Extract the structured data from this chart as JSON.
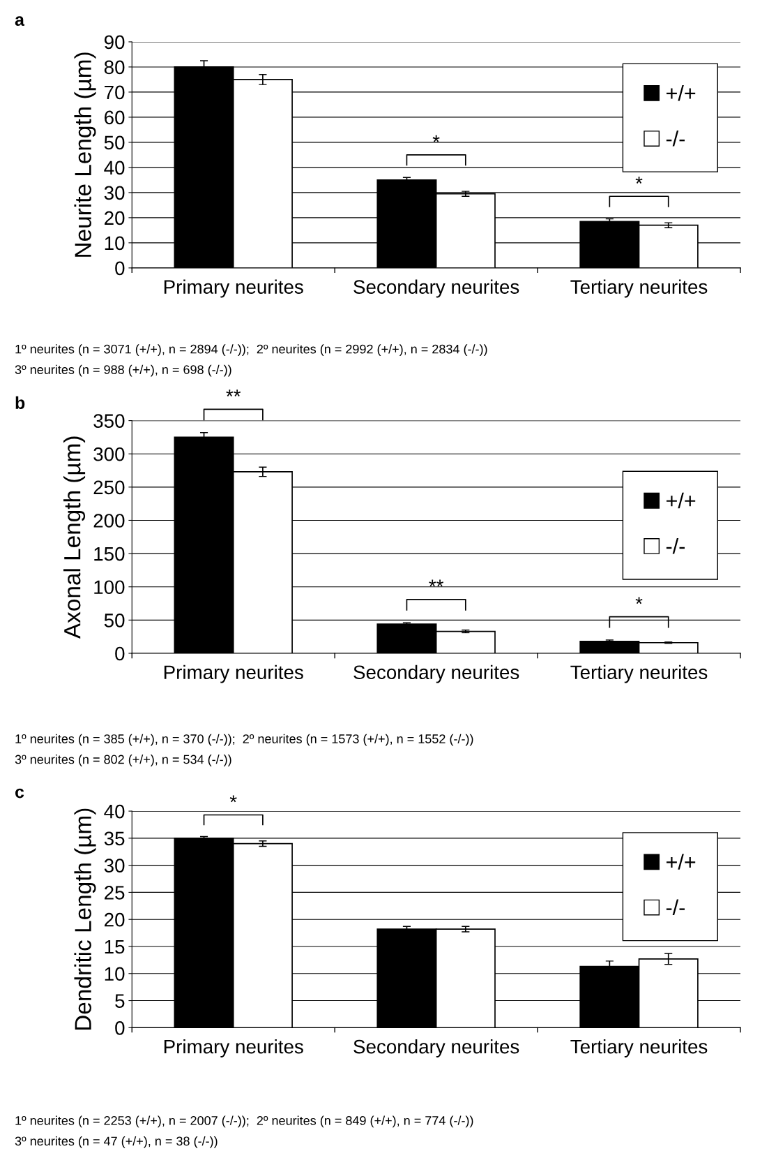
{
  "chart_data": [
    {
      "type": "bar",
      "title": "a",
      "ylabel": "Neurite Length (µm)",
      "categories": [
        "Primary neurites",
        "Secondary neurites",
        "Tertiary neurites"
      ],
      "series": [
        {
          "name": "+/+",
          "color": "#000000",
          "values": [
            80,
            35,
            18.5
          ],
          "errors": [
            2.5,
            1,
            1
          ]
        },
        {
          "name": "-/-",
          "color": "#ffffff",
          "values": [
            75,
            29.5,
            17
          ],
          "errors": [
            2,
            1,
            1
          ]
        }
      ],
      "ylim": [
        0,
        90
      ],
      "yticks": [
        0,
        10,
        20,
        30,
        40,
        50,
        60,
        70,
        80,
        90
      ],
      "grid": "y",
      "legend": "top right",
      "annotations": [
        {
          "text": "*",
          "x": "Secondary neurites",
          "y": 35
        },
        {
          "text": "*",
          "x": "Tertiary neurites",
          "y": 18.5
        },
        "1º neurites (n = 3071 (+/+), n = 2894 (-/-));  2º neurites (n = 2992 (+/+), n = 2834 (-/-))",
        "3º neurites (n = 988 (+/+), n = 698 (-/-))"
      ]
    },
    {
      "type": "bar",
      "title": "b",
      "ylabel": "Axonal Length (µm)",
      "categories": [
        "Primary neurites",
        "Secondary neurites",
        "Tertiary neurites"
      ],
      "series": [
        {
          "name": "+/+",
          "color": "#000000",
          "values": [
            325,
            44,
            18
          ],
          "errors": [
            7,
            2,
            2
          ]
        },
        {
          "name": "-/-",
          "color": "#ffffff",
          "values": [
            273,
            33,
            16
          ],
          "errors": [
            7,
            2,
            1
          ]
        }
      ],
      "ylim": [
        0,
        350
      ],
      "yticks": [
        0,
        50,
        100,
        150,
        200,
        250,
        300,
        350
      ],
      "grid": "y",
      "legend": "right",
      "annotations": [
        {
          "text": "**",
          "x": "Primary neurites",
          "y": 325
        },
        {
          "text": "**",
          "x": "Secondary neurites",
          "y": 44
        },
        {
          "text": "*",
          "x": "Tertiary neurites",
          "y": 18
        },
        "1º neurites (n = 385 (+/+), n = 370 (-/-));  2º neurites (n = 1573 (+/+), n = 1552 (-/-))",
        "3º neurites (n = 802 (+/+), n = 534 (-/-))"
      ]
    },
    {
      "type": "bar",
      "title": "c",
      "ylabel": "Dendritic Length (µm)",
      "categories": [
        "Primary neurites",
        "Secondary neurites",
        "Tertiary neurites"
      ],
      "series": [
        {
          "name": "+/+",
          "color": "#000000",
          "values": [
            35,
            18.2,
            11.3
          ],
          "errors": [
            0.3,
            0.5,
            1
          ]
        },
        {
          "name": "-/-",
          "color": "#ffffff",
          "values": [
            34,
            18.2,
            12.7
          ],
          "errors": [
            0.5,
            0.5,
            1
          ]
        }
      ],
      "ylim": [
        0,
        40
      ],
      "yticks": [
        0,
        5,
        10,
        15,
        20,
        25,
        30,
        35,
        40
      ],
      "grid": "y",
      "legend": "top right",
      "annotations": [
        {
          "text": "*",
          "x": "Primary neurites",
          "y": 35
        },
        "1º neurites (n = 2253 (+/+), n = 2007 (-/-));  2º neurites (n = 849 (+/+), n = 774 (-/-))",
        "3º neurites (n = 47 (+/+), n = 38 (-/-))"
      ]
    }
  ]
}
